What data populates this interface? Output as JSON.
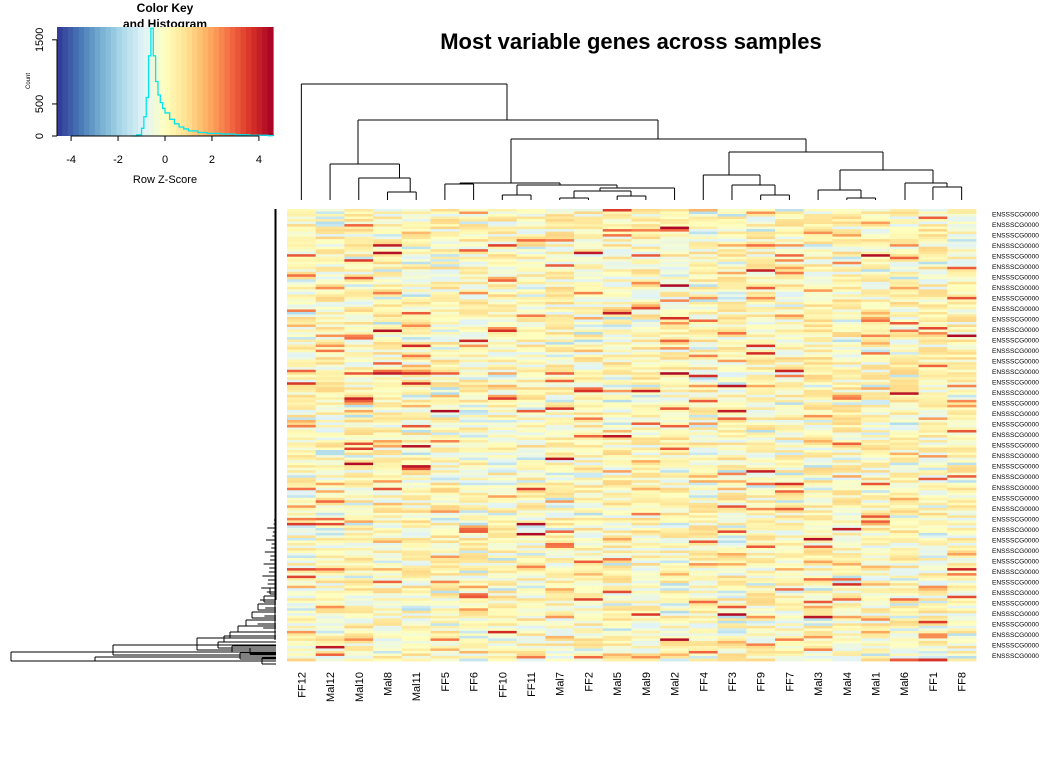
{
  "title": "Most variable genes across samples",
  "color_key": {
    "title_line1": "Color Key",
    "title_line2": "and Histogram",
    "ylabel": "Count",
    "xlabel": "Row Z-Score",
    "xticks": [
      -4,
      -2,
      0,
      2,
      4
    ],
    "yticks": [
      0,
      500,
      1500
    ],
    "xlim": [
      -4.6,
      4.6
    ],
    "ylim": [
      0,
      1700
    ],
    "palette": [
      "#313695",
      "#4575b4",
      "#74add1",
      "#abd9e9",
      "#e0f3f8",
      "#ffffbf",
      "#fee090",
      "#fdae61",
      "#f46d43",
      "#d73027",
      "#a50026"
    ],
    "histogram_color": "#00e5ee",
    "histogram": {
      "x": [
        -1.4,
        -1.2,
        -1.0,
        -0.9,
        -0.8,
        -0.7,
        -0.6,
        -0.5,
        -0.4,
        -0.3,
        -0.2,
        -0.1,
        0.0,
        0.2,
        0.4,
        0.6,
        0.8,
        1.0,
        1.4,
        1.8,
        2.4,
        3.0,
        3.6,
        4.4
      ],
      "counts": [
        0,
        20,
        120,
        300,
        600,
        1250,
        1680,
        1250,
        850,
        640,
        520,
        430,
        360,
        260,
        190,
        140,
        110,
        80,
        55,
        40,
        30,
        20,
        12,
        5
      ]
    }
  },
  "chart_data": {
    "type": "heatmap",
    "title": "Most variable genes across samples",
    "columns": [
      "FF12",
      "Mal12",
      "Mal10",
      "Mal8",
      "Mal11",
      "FF5",
      "FF6",
      "FF10",
      "FF11",
      "Mal7",
      "FF2",
      "Mal5",
      "Mal9",
      "Mal2",
      "FF4",
      "FF3",
      "FF9",
      "FF7",
      "Mal3",
      "Mal4",
      "Mal1",
      "Mal6",
      "FF1",
      "FF8"
    ],
    "row_label_text": "ENSSSCG0000",
    "row_count": 43,
    "value_range": [
      -4.6,
      4.6
    ],
    "has_column_dendrogram": true,
    "has_row_dendrogram": true
  }
}
